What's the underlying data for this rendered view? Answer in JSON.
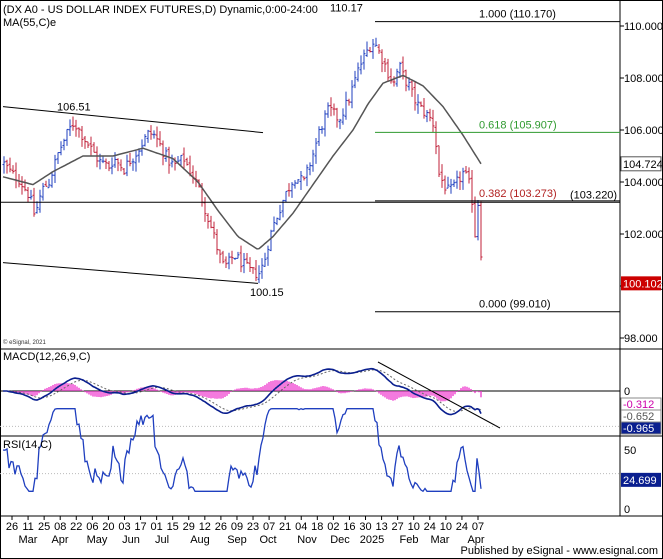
{
  "header": {
    "title": "(DX A0 - US DOLLAR INDEX FUTURES,D) Dynamic,0:00-24:00",
    "ma_label": "MA(55,C)e"
  },
  "footer": {
    "copyright": "© eSignal, 2021",
    "publisher": "Published by eSignal - www.esignal.com"
  },
  "colors": {
    "bar": "#1f3fbf",
    "bar_down": "#c0203a",
    "ma": "#555555",
    "fib_green": "#2f9a2f",
    "fib_red": "#b22222",
    "macd_line": "#0a1f8f",
    "macd_hist": "#ee33cc",
    "rsi": "#1f3fbf",
    "last_price_bg": "#cc0000"
  },
  "chart_data": [
    {
      "type": "bar",
      "name": "price",
      "x_axis": {
        "day_labels": [
          "26",
          "11",
          "25",
          "08",
          "22",
          "06",
          "20",
          "03",
          "17",
          "01",
          "15",
          "29",
          "12",
          "26",
          "09",
          "23",
          "07",
          "21",
          "04",
          "18",
          "02",
          "16",
          "30",
          "13",
          "27",
          "10",
          "24",
          "10",
          "24",
          "07"
        ],
        "month_labels": [
          "Mar",
          "Apr",
          "May",
          "Jun",
          "Jul",
          "Aug",
          "Sep",
          "Oct",
          "Nov",
          "Dec",
          "2025",
          "Feb",
          "Mar",
          "Apr"
        ]
      },
      "y_axis": {
        "range": [
          98.0,
          110.5
        ],
        "ticks": [
          "110.000",
          "108.000",
          "106.000",
          "104.000",
          "102.000",
          "100.000",
          "98.000"
        ]
      },
      "price_path": [
        [
          0,
          104.7
        ],
        [
          8,
          104.3
        ],
        [
          15,
          104.1
        ],
        [
          20,
          103.8
        ],
        [
          25,
          103.5
        ],
        [
          30,
          102.8
        ],
        [
          33,
          103.0
        ],
        [
          38,
          103.7
        ],
        [
          45,
          104.0
        ],
        [
          50,
          104.6
        ],
        [
          55,
          105.2
        ],
        [
          60,
          105.6
        ],
        [
          65,
          106.0
        ],
        [
          70,
          106.3
        ],
        [
          75,
          106.0
        ],
        [
          80,
          105.7
        ],
        [
          85,
          105.4
        ],
        [
          90,
          105.1
        ],
        [
          95,
          104.8
        ],
        [
          100,
          104.7
        ],
        [
          105,
          104.6
        ],
        [
          110,
          104.9
        ],
        [
          115,
          104.7
        ],
        [
          120,
          104.5
        ],
        [
          125,
          104.8
        ],
        [
          130,
          105.0
        ],
        [
          135,
          105.3
        ],
        [
          140,
          105.6
        ],
        [
          145,
          105.9
        ],
        [
          150,
          105.8
        ],
        [
          155,
          105.5
        ],
        [
          160,
          105.1
        ],
        [
          165,
          104.8
        ],
        [
          170,
          104.6
        ],
        [
          175,
          104.8
        ],
        [
          180,
          104.9
        ],
        [
          185,
          104.5
        ],
        [
          190,
          104.2
        ],
        [
          195,
          103.7
        ],
        [
          200,
          103.1
        ],
        [
          205,
          102.5
        ],
        [
          210,
          101.9
        ],
        [
          215,
          101.2
        ],
        [
          220,
          100.7
        ],
        [
          225,
          100.9
        ],
        [
          230,
          101.2
        ],
        [
          235,
          101.0
        ],
        [
          240,
          100.8
        ],
        [
          245,
          100.6
        ],
        [
          250,
          100.5
        ],
        [
          255,
          100.5
        ],
        [
          260,
          100.9
        ],
        [
          265,
          101.8
        ],
        [
          270,
          102.4
        ],
        [
          275,
          102.9
        ],
        [
          280,
          103.4
        ],
        [
          285,
          103.8
        ],
        [
          290,
          104.2
        ],
        [
          295,
          104.1
        ],
        [
          300,
          104.0
        ],
        [
          305,
          104.6
        ],
        [
          310,
          105.2
        ],
        [
          315,
          105.9
        ],
        [
          320,
          106.4
        ],
        [
          325,
          106.8
        ],
        [
          330,
          106.6
        ],
        [
          335,
          106.4
        ],
        [
          340,
          106.8
        ],
        [
          345,
          107.2
        ],
        [
          350,
          107.8
        ],
        [
          355,
          108.4
        ],
        [
          360,
          108.8
        ],
        [
          365,
          109.2
        ],
        [
          370,
          109.4
        ],
        [
          375,
          109.0
        ],
        [
          380,
          108.6
        ],
        [
          385,
          108.1
        ],
        [
          390,
          107.8
        ],
        [
          395,
          108.5
        ],
        [
          400,
          108.0
        ],
        [
          405,
          107.7
        ],
        [
          410,
          107.2
        ],
        [
          415,
          106.9
        ],
        [
          420,
          106.7
        ],
        [
          425,
          106.5
        ],
        [
          430,
          106.2
        ],
        [
          435,
          104.3
        ],
        [
          440,
          103.9
        ],
        [
          445,
          103.6
        ],
        [
          450,
          103.8
        ],
        [
          455,
          104.1
        ],
        [
          460,
          104.4
        ],
        [
          465,
          103.9
        ],
        [
          468,
          103.3
        ],
        [
          471,
          102.0
        ],
        [
          474,
          103.2
        ],
        [
          476,
          102.4
        ],
        [
          478,
          100.2
        ]
      ],
      "ma_path": [
        [
          0,
          104.2
        ],
        [
          30,
          103.9
        ],
        [
          50,
          104.4
        ],
        [
          80,
          105.0
        ],
        [
          110,
          105.0
        ],
        [
          140,
          105.3
        ],
        [
          170,
          104.9
        ],
        [
          195,
          104.0
        ],
        [
          215,
          102.9
        ],
        [
          235,
          101.9
        ],
        [
          255,
          101.4
        ],
        [
          270,
          101.9
        ],
        [
          290,
          102.8
        ],
        [
          310,
          103.9
        ],
        [
          330,
          105.0
        ],
        [
          350,
          106.0
        ],
        [
          365,
          107.0
        ],
        [
          380,
          107.8
        ],
        [
          400,
          108.1
        ],
        [
          420,
          107.7
        ],
        [
          440,
          106.9
        ],
        [
          460,
          105.8
        ],
        [
          478,
          104.7
        ]
      ],
      "last_price": "100.102",
      "ma_last": "104.724",
      "annotations": {
        "high_1": "106.51",
        "high_2": "110.17",
        "low_1": "100.15",
        "level_103": "(103.220)"
      },
      "fib_levels": [
        {
          "ratio": "1.000",
          "value": 110.17,
          "label": "(110.170)"
        },
        {
          "ratio": "0.618",
          "value": 105.907,
          "label": "(105.907)"
        },
        {
          "ratio": "0.382",
          "value": 103.273,
          "label": "(103.273)"
        },
        {
          "ratio": "0.000",
          "value": 99.01,
          "label": "(99.010)"
        }
      ],
      "horizontal_level": 103.22,
      "channel_upper": [
        [
          0,
          106.9
        ],
        [
          260,
          105.9
        ]
      ],
      "channel_lower": [
        [
          0,
          100.9
        ],
        [
          255,
          100.1
        ]
      ]
    },
    {
      "type": "line",
      "name": "macd",
      "title": "MACD(12,26,9,C)",
      "y_axis": {
        "range": [
          -1.3,
          1.6
        ],
        "ticks": [
          "0"
        ]
      },
      "values_shown": [
        "-0.312",
        "-0.652",
        "-0.965"
      ]
    },
    {
      "type": "line",
      "name": "rsi",
      "title": "RSI(14,C)",
      "y_axis": {
        "range": [
          0,
          100
        ],
        "ticks": [
          "50",
          "0"
        ],
        "guides": [
          70,
          30
        ]
      },
      "last_value": "24.699"
    }
  ]
}
